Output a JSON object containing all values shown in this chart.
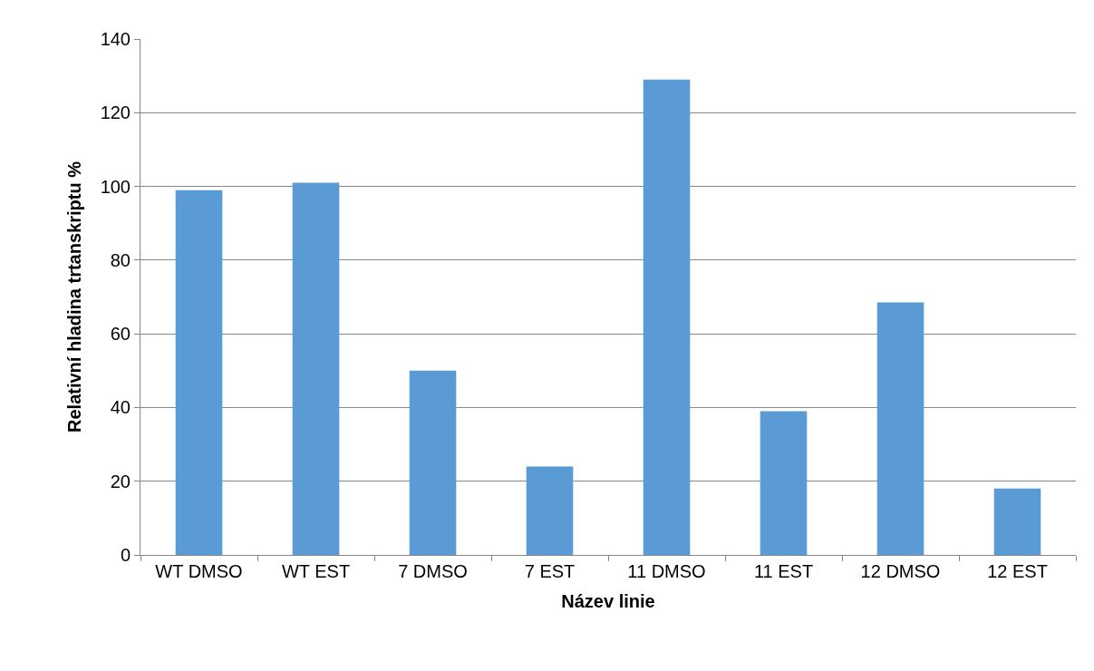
{
  "chart_data": {
    "type": "bar",
    "xlabel": "Název linie",
    "ylabel": "Relativní hladina trtanskriptu %",
    "categories": [
      "WT DMSO",
      "WT EST",
      "7 DMSO",
      "7 EST",
      "11 DMSO",
      "11 EST",
      "12 DMSO",
      "12 EST"
    ],
    "values": [
      99,
      101,
      50,
      24,
      129,
      39,
      68.5,
      18
    ],
    "color": "#5b9bd5",
    "ylim": [
      0,
      140
    ],
    "yticks": [
      0,
      20,
      40,
      60,
      80,
      100,
      120,
      140
    ],
    "grid": "y",
    "legend": false
  }
}
